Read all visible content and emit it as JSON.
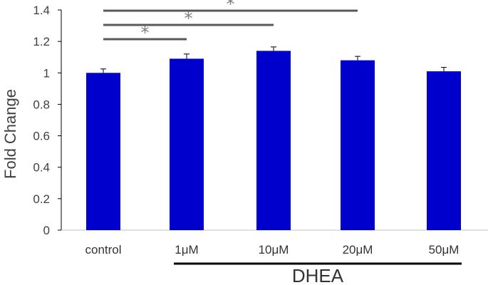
{
  "chart_data": {
    "type": "bar",
    "categories": [
      "control",
      "1μM",
      "10μM",
      "20μM",
      "50μM"
    ],
    "values": [
      1.0,
      1.09,
      1.14,
      1.08,
      1.01
    ],
    "errors": [
      0.025,
      0.03,
      0.025,
      0.025,
      0.025
    ],
    "ylabel": "Fold Change",
    "ylim": [
      0,
      1.4
    ],
    "yticks": [
      0,
      0.2,
      0.4,
      0.6,
      0.8,
      1,
      1.2,
      1.4
    ],
    "group_label": "DHEA",
    "significance": [
      {
        "from": "control",
        "to": "1μM",
        "label": "*"
      },
      {
        "from": "control",
        "to": "10μM",
        "label": "*"
      },
      {
        "from": "control",
        "to": "20μM",
        "label": "*"
      }
    ],
    "colors": {
      "bar": "#0000cc",
      "axis": "#000000",
      "bracket": "#595959",
      "star": "#7f7f7f"
    },
    "grid": false,
    "legend": "none"
  }
}
